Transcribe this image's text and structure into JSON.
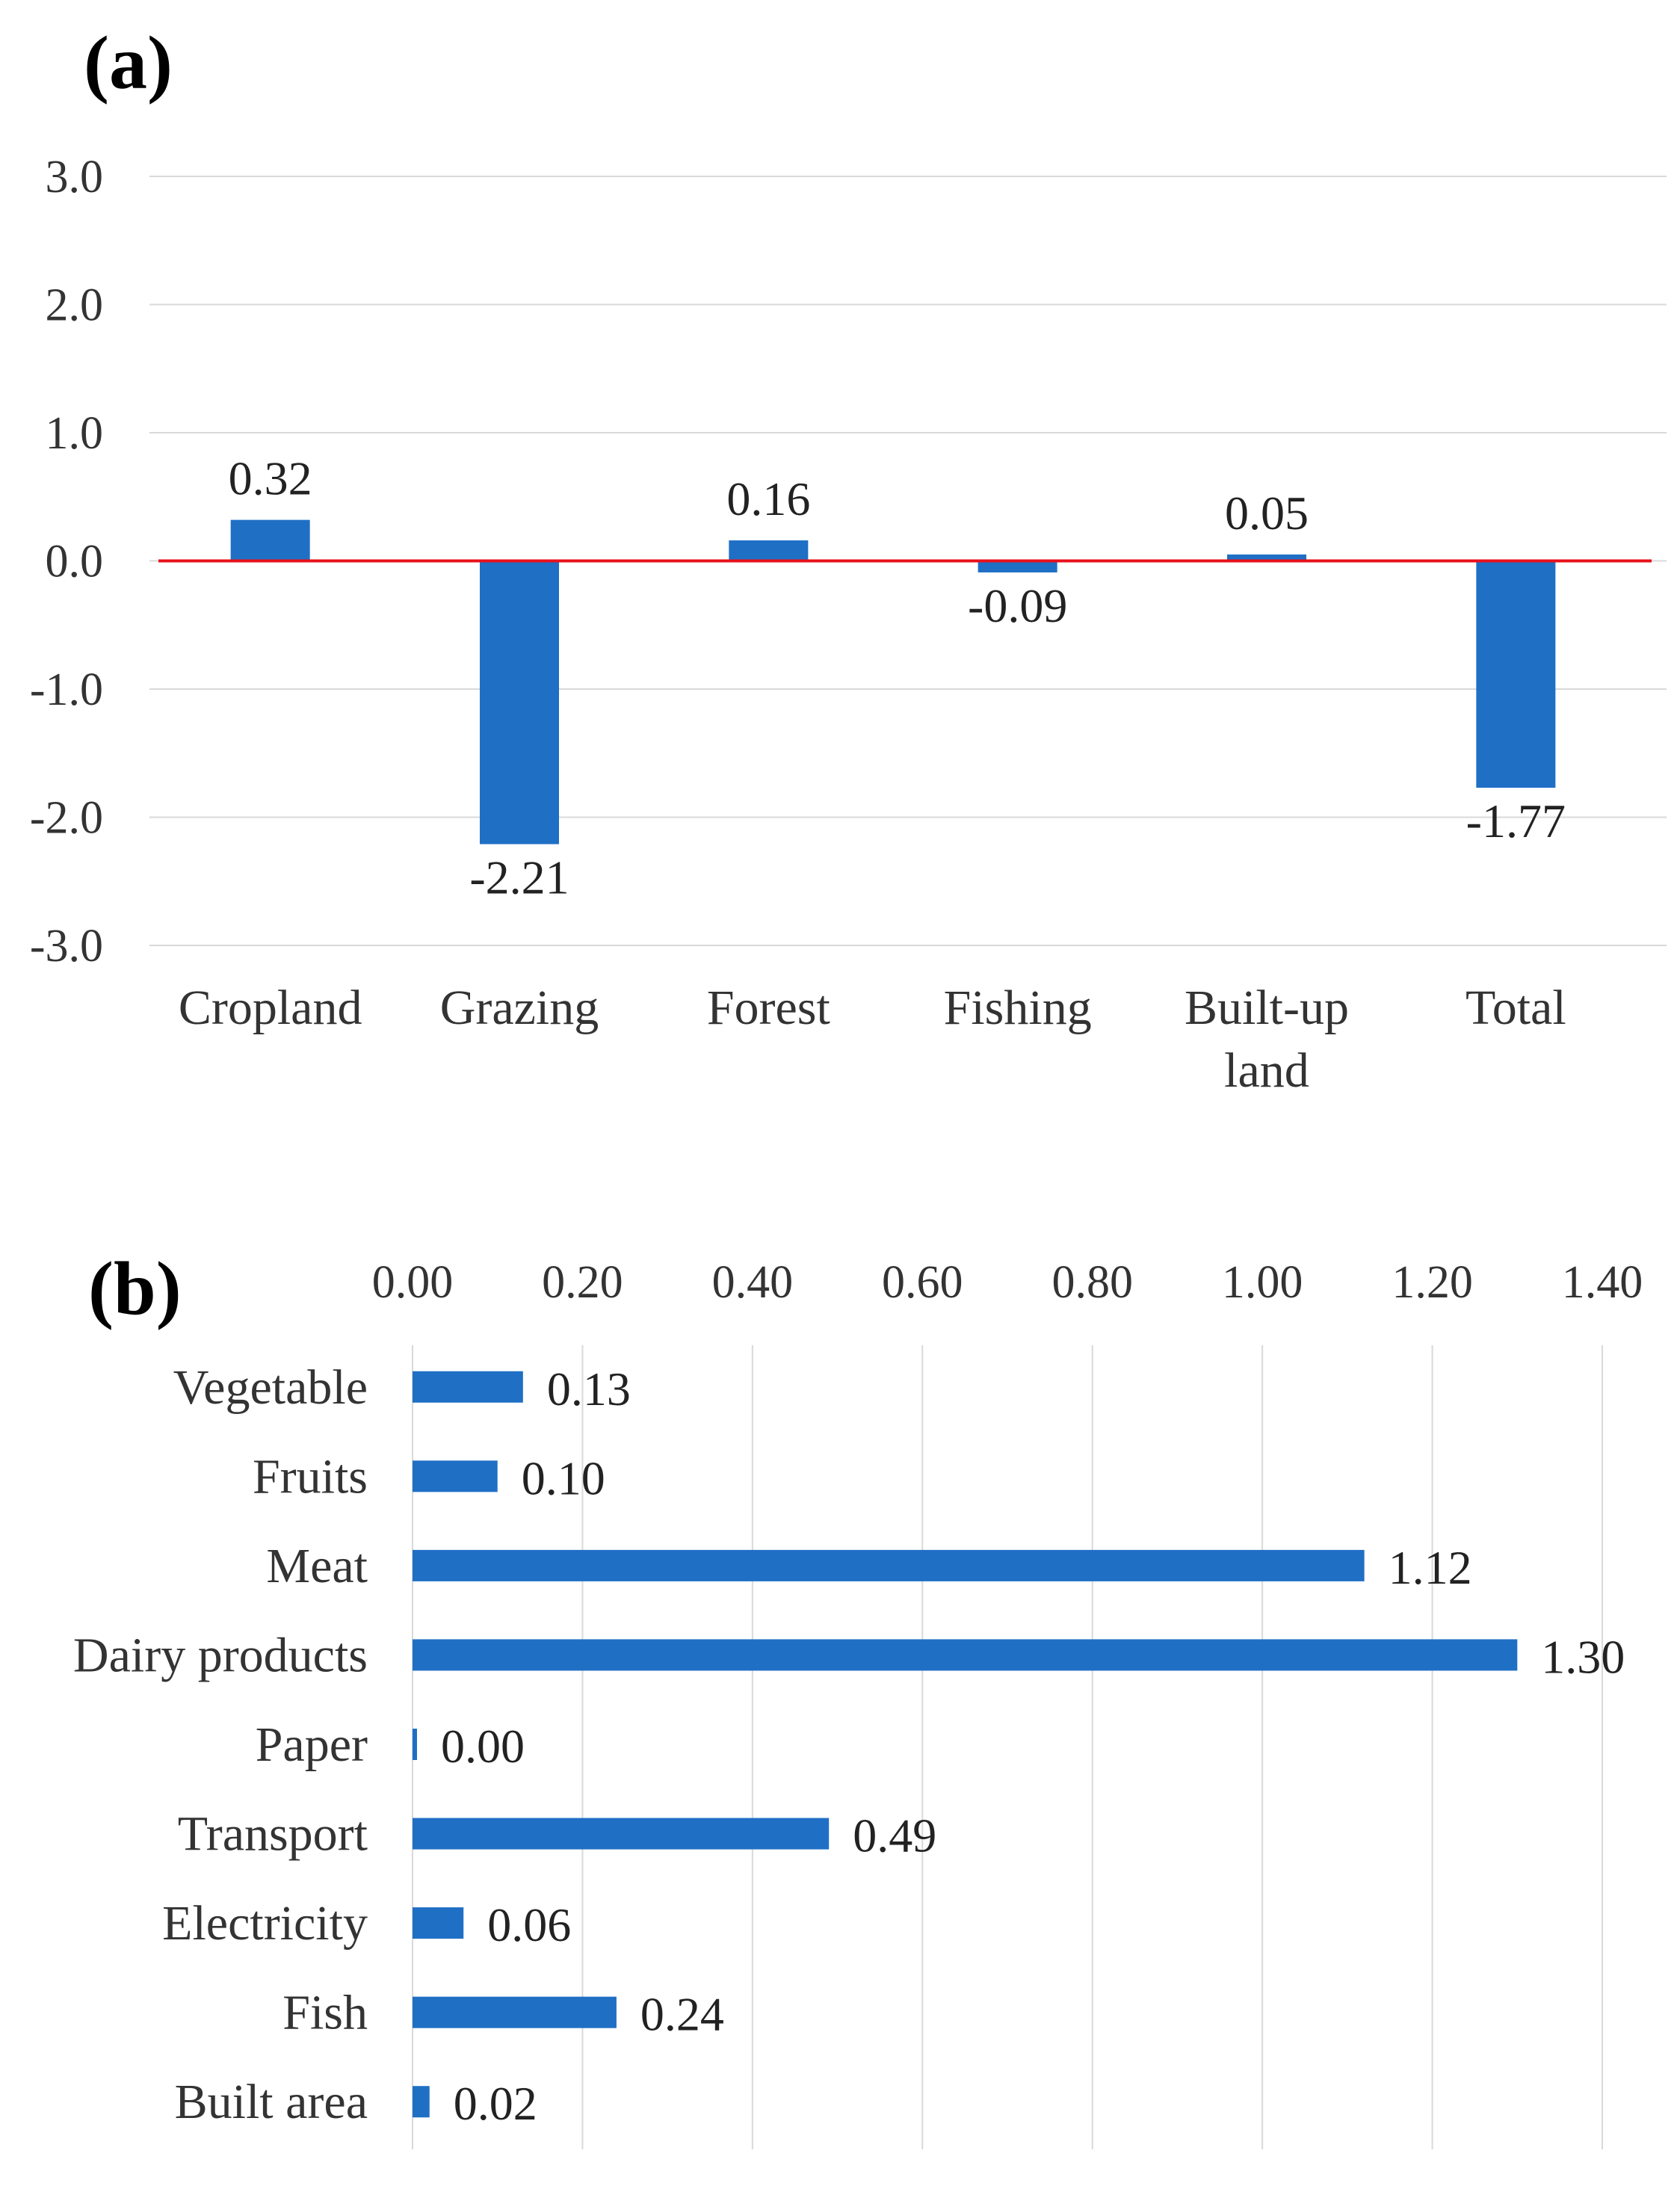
{
  "chart_data": [
    {
      "panel": "(a)",
      "type": "bar",
      "orientation": "vertical",
      "categories": [
        "Cropland",
        "Grazing",
        "Forest",
        "Fishing",
        "Built-up land",
        "Total"
      ],
      "category_lines": [
        [
          "Cropland"
        ],
        [
          "Grazing"
        ],
        [
          "Forest"
        ],
        [
          "Fishing"
        ],
        [
          "Built-up",
          "land"
        ],
        [
          "Total"
        ]
      ],
      "values": [
        0.32,
        -2.21,
        0.16,
        -0.09,
        0.05,
        -1.77
      ],
      "data_labels": [
        "0.32",
        "-2.21",
        "0.16",
        "-0.09",
        "0.05",
        "-1.77"
      ],
      "ylim": [
        -3.0,
        3.0
      ],
      "yticks": [
        "3.0",
        "2.0",
        "1.0",
        "0.0",
        "-1.0",
        "-2.0",
        "-3.0"
      ],
      "ytick_values": [
        3,
        2,
        1,
        0,
        -1,
        -2,
        -3
      ],
      "grid": true,
      "reference_line": 0.0,
      "bar_color": "#1f6fc5",
      "reference_line_color": "#e8101a",
      "grid_color": "#d9d9d9"
    },
    {
      "panel": "(b)",
      "type": "bar",
      "orientation": "horizontal",
      "categories": [
        "Vegetable",
        "Fruits",
        "Meat",
        "Dairy products",
        "Paper",
        "Transport",
        "Electricity",
        "Fish",
        "Built area"
      ],
      "values": [
        0.13,
        0.1,
        1.12,
        1.3,
        0.0,
        0.49,
        0.06,
        0.24,
        0.02
      ],
      "data_labels": [
        "0.13",
        "0.10",
        "1.12",
        "1.30",
        "0.00",
        "0.49",
        "0.06",
        "0.24",
        "0.02"
      ],
      "xlim": [
        0.0,
        1.4
      ],
      "xticks": [
        "0.00",
        "0.20",
        "0.40",
        "0.60",
        "0.80",
        "1.00",
        "1.20",
        "1.40"
      ],
      "xtick_values": [
        0,
        0.2,
        0.4,
        0.6,
        0.8,
        1.0,
        1.2,
        1.4
      ],
      "axis_position": "top",
      "grid": true,
      "bar_color": "#1f6fc5",
      "grid_color": "#d9d9d9"
    }
  ]
}
